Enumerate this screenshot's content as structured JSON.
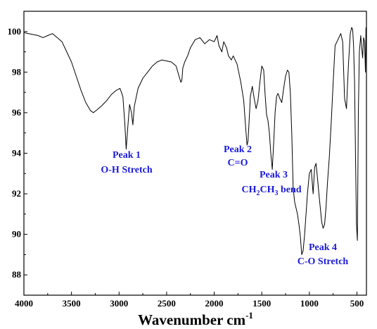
{
  "chart_data": {
    "type": "line",
    "title": "",
    "xlabel": "Wavenumber cm",
    "xlabel_sup": "-1",
    "ylabel": "",
    "xlim": [
      4000,
      400
    ],
    "ylim": [
      87,
      101
    ],
    "x_reversed": true,
    "grid": false,
    "line_color": "#000000",
    "annotation_color": "#1a1ad6",
    "xticks": [
      4000,
      3500,
      3000,
      2500,
      2000,
      1500,
      1000,
      500
    ],
    "yticks": [
      88,
      90,
      92,
      94,
      96,
      98,
      100
    ],
    "series": [
      {
        "x": [
          4000,
          3950,
          3900,
          3850,
          3800,
          3750,
          3700,
          3650,
          3600,
          3550,
          3500,
          3450,
          3400,
          3350,
          3300,
          3270,
          3230,
          3180,
          3130,
          3080,
          3030,
          2990,
          2960,
          2940,
          2925,
          2910,
          2890,
          2870,
          2855,
          2840,
          2800,
          2750,
          2700,
          2650,
          2600,
          2550,
          2500,
          2450,
          2400,
          2370,
          2350,
          2340,
          2330,
          2310,
          2280,
          2250,
          2200,
          2150,
          2100,
          2050,
          2000,
          1970,
          1950,
          1920,
          1900,
          1870,
          1850,
          1820,
          1800,
          1760,
          1720,
          1690,
          1670,
          1655,
          1645,
          1635,
          1620,
          1600,
          1580,
          1560,
          1540,
          1520,
          1500,
          1480,
          1465,
          1450,
          1435,
          1420,
          1405,
          1390,
          1375,
          1360,
          1345,
          1330,
          1310,
          1290,
          1270,
          1250,
          1230,
          1215,
          1200,
          1185,
          1170,
          1155,
          1140,
          1125,
          1110,
          1095,
          1080,
          1065,
          1050,
          1035,
          1020,
          1000,
          980,
          960,
          945,
          930,
          915,
          900,
          885,
          870,
          855,
          840,
          825,
          810,
          790,
          770,
          750,
          730,
          710,
          690,
          670,
          650,
          630,
          610,
          590,
          570,
          555,
          545,
          535,
          525,
          515,
          505,
          495,
          485,
          475,
          460,
          450,
          440,
          430,
          420,
          410,
          405
        ],
        "y": [
          99.95,
          99.9,
          99.85,
          99.8,
          99.7,
          99.8,
          99.9,
          99.7,
          99.5,
          99.0,
          98.5,
          97.8,
          97.1,
          96.5,
          96.1,
          96.0,
          96.15,
          96.35,
          96.6,
          96.9,
          97.1,
          97.2,
          96.8,
          95.5,
          94.2,
          95.2,
          96.4,
          96.0,
          95.4,
          96.3,
          97.2,
          97.7,
          98.0,
          98.3,
          98.5,
          98.6,
          98.55,
          98.5,
          98.3,
          97.8,
          97.5,
          97.6,
          98.2,
          98.5,
          98.8,
          99.2,
          99.6,
          99.7,
          99.4,
          99.6,
          99.5,
          99.8,
          99.3,
          99.0,
          99.5,
          99.2,
          98.8,
          98.6,
          98.8,
          98.4,
          97.5,
          96.6,
          95.3,
          94.4,
          94.6,
          95.4,
          96.8,
          97.3,
          96.7,
          96.2,
          96.6,
          97.5,
          98.3,
          98.1,
          96.9,
          95.9,
          95.6,
          95.0,
          94.0,
          93.2,
          94.5,
          96.0,
          96.8,
          96.95,
          96.7,
          96.5,
          97.2,
          97.8,
          98.1,
          98.0,
          97.0,
          95.0,
          92.3,
          91.6,
          91.3,
          91.0,
          90.5,
          89.9,
          89.0,
          89.2,
          90.0,
          91.0,
          92.0,
          93.0,
          93.2,
          92.0,
          93.3,
          93.5,
          92.8,
          92.0,
          91.3,
          90.6,
          90.3,
          90.5,
          91.3,
          92.5,
          93.8,
          95.5,
          97.5,
          99.3,
          99.5,
          99.7,
          99.9,
          99.5,
          96.7,
          96.2,
          98.3,
          99.9,
          100.2,
          100.1,
          99.3,
          97.5,
          94.0,
          90.5,
          89.7,
          96.0,
          99.0,
          99.8,
          99.2,
          98.7,
          99.7,
          99.5,
          98.0,
          100.2
        ]
      }
    ],
    "annotations": [
      {
        "line1": "Peak 1",
        "line2": "O-H Stretch"
      },
      {
        "line1": "Peak 2",
        "line2": "C=O"
      },
      {
        "line1": "Peak 3",
        "line2_parts": [
          "CH",
          "2",
          "CH",
          "3",
          " bend"
        ]
      },
      {
        "line1": "Peak 4",
        "line2": "C-O Stretch"
      }
    ]
  }
}
